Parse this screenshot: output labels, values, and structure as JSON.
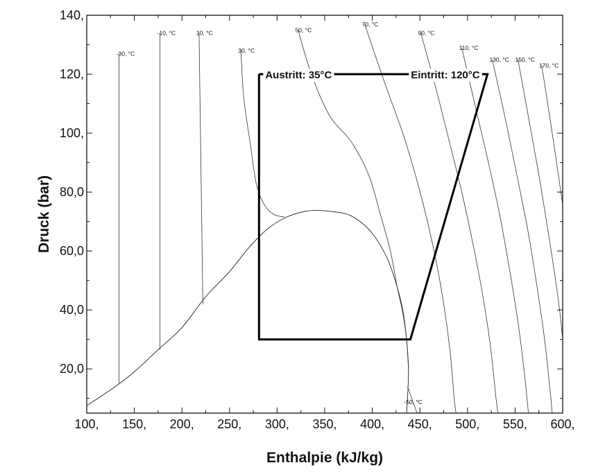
{
  "chart_data": {
    "type": "line",
    "title": "",
    "xlabel": "Enthalpie (kJ/kg)",
    "ylabel": "Druck (bar)",
    "xlim": [
      100,
      600
    ],
    "ylim": [
      5,
      140
    ],
    "x_ticks": [
      100,
      150,
      200,
      250,
      300,
      350,
      400,
      450,
      500,
      550,
      600
    ],
    "x_tick_labels": [
      "100,",
      "150,",
      "200,",
      "250,",
      "300,",
      "350,",
      "400,",
      "450,",
      "500,",
      "550,",
      "600,"
    ],
    "y_ticks": [
      20,
      40,
      60,
      80,
      100,
      120,
      140
    ],
    "y_tick_labels": [
      "20,0",
      "40,0",
      "60,0",
      "80,0",
      "100,",
      "120,",
      "140,"
    ],
    "grid": false,
    "saturation_dome": {
      "liquid": [
        [
          100,
          7.5
        ],
        [
          130,
          14
        ],
        [
          150,
          19
        ],
        [
          175,
          26.5
        ],
        [
          200,
          34
        ],
        [
          225,
          44.5
        ],
        [
          250,
          53
        ],
        [
          270,
          61
        ],
        [
          290,
          67.5
        ],
        [
          310,
          71.5
        ],
        [
          330,
          73.5
        ],
        [
          345,
          73.8
        ]
      ],
      "vapor": [
        [
          345,
          73.8
        ],
        [
          370,
          72.8
        ],
        [
          385,
          70.5
        ],
        [
          400,
          66
        ],
        [
          415,
          58
        ],
        [
          425,
          49
        ],
        [
          432,
          40
        ],
        [
          436,
          30
        ],
        [
          438,
          20
        ],
        [
          437,
          10
        ],
        [
          436,
          5
        ]
      ]
    },
    "isotherms": [
      {
        "label": "-30, °C",
        "points": [
          [
            134,
            127
          ],
          [
            134,
            15
          ]
        ]
      },
      {
        "label": "-10, °C",
        "points": [
          [
            177,
            134
          ],
          [
            177,
            26.5
          ]
        ]
      },
      {
        "label": "10, °C",
        "points": [
          [
            218,
            134
          ],
          [
            222,
            42
          ]
        ]
      },
      {
        "label": "30, °C",
        "points": [
          [
            262,
            128
          ],
          [
            265,
            112
          ],
          [
            272,
            96
          ],
          [
            278,
            83
          ],
          [
            286,
            76
          ],
          [
            296,
            72.5
          ],
          [
            308,
            71.5
          ]
        ]
      },
      {
        "label": "50, °C",
        "points": [
          [
            322,
            135
          ],
          [
            336,
            120
          ],
          [
            355,
            106
          ],
          [
            378,
            97
          ],
          [
            396,
            86
          ],
          [
            408,
            73
          ],
          [
            419,
            60
          ],
          [
            426,
            48
          ],
          [
            432,
            39
          ],
          [
            436,
            30
          ],
          [
            438,
            20
          ]
        ]
      },
      {
        "label": "70, °C",
        "points": [
          [
            392,
            137
          ],
          [
            412,
            118
          ],
          [
            432,
            100
          ],
          [
            446,
            85
          ],
          [
            458,
            70
          ],
          [
            468,
            55
          ],
          [
            476,
            40
          ],
          [
            482,
            25
          ],
          [
            486,
            10
          ],
          [
            488,
            5
          ]
        ]
      },
      {
        "label": "90, °C",
        "points": [
          [
            451,
            134
          ],
          [
            467,
            115
          ],
          [
            481,
            97
          ],
          [
            494,
            80
          ],
          [
            506,
            62
          ],
          [
            516,
            45
          ],
          [
            524,
            28
          ],
          [
            530,
            10
          ],
          [
            532,
            5
          ]
        ]
      },
      {
        "label": "110, °C",
        "points": [
          [
            494,
            129
          ],
          [
            509,
            108
          ],
          [
            522,
            90
          ],
          [
            534,
            72
          ],
          [
            544,
            54
          ],
          [
            553,
            36
          ],
          [
            560,
            18
          ],
          [
            564,
            5
          ]
        ]
      },
      {
        "label": "130, °C",
        "points": [
          [
            526,
            125
          ],
          [
            541,
            103
          ],
          [
            553,
            84
          ],
          [
            564,
            66
          ],
          [
            573,
            48
          ],
          [
            581,
            30
          ],
          [
            587,
            12
          ],
          [
            589,
            5
          ]
        ]
      },
      {
        "label": "150, °C",
        "points": [
          [
            553,
            125
          ],
          [
            566,
            102
          ],
          [
            577,
            82
          ],
          [
            587,
            62
          ],
          [
            596,
            42
          ],
          [
            600,
            30
          ]
        ]
      },
      {
        "label": "170, °C",
        "points": [
          [
            578,
            123
          ],
          [
            589,
            100
          ],
          [
            599,
            78
          ],
          [
            600,
            75
          ]
        ]
      }
    ],
    "isotherm_low": {
      "label": "-50, °C",
      "points": [
        [
          437,
          14
        ],
        [
          447,
          5
        ]
      ]
    },
    "cycle": {
      "name": "",
      "points": [
        [
          281,
          120
        ],
        [
          281,
          30
        ],
        [
          440,
          30
        ],
        [
          521,
          120
        ],
        [
          281,
          120
        ]
      ]
    },
    "annotations": [
      {
        "text": "Austritt: 35°C",
        "x": 281,
        "y": 120
      },
      {
        "text": "Eintritt: 120°C",
        "x": 521,
        "y": 120
      }
    ]
  }
}
